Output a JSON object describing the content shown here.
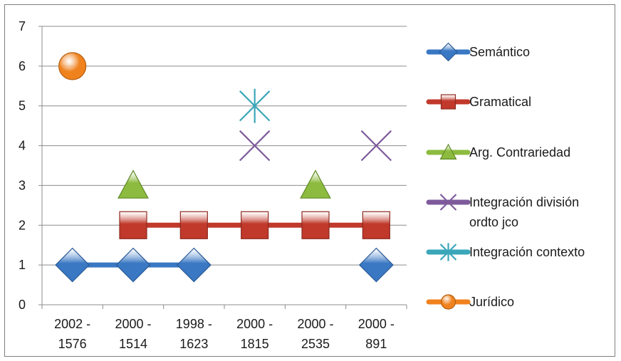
{
  "chart_data": {
    "type": "line",
    "title": "",
    "xlabel": "",
    "ylabel": "",
    "ylim": [
      0,
      7
    ],
    "y_ticks": [
      "0",
      "1",
      "2",
      "3",
      "4",
      "5",
      "6",
      "7"
    ],
    "grid": true,
    "legend_position": "right",
    "categories": [
      [
        "2002 -",
        "1576"
      ],
      [
        "2000 -",
        "1514"
      ],
      [
        "1998 -",
        "1623"
      ],
      [
        "2000 -",
        "1815"
      ],
      [
        "2000 -",
        "2535"
      ],
      [
        "2000 -",
        "891"
      ]
    ],
    "series": [
      {
        "name": "Semántico",
        "values": [
          1,
          1,
          1,
          null,
          null,
          1
        ],
        "color": "#3a78c3",
        "marker": "diamond",
        "line": true
      },
      {
        "name": "Gramatical",
        "values": [
          null,
          2,
          2,
          2,
          2,
          2
        ],
        "color": "#c0392b",
        "marker": "square",
        "line": true
      },
      {
        "name": "Arg. Contrariedad",
        "values": [
          null,
          3,
          null,
          null,
          3,
          null
        ],
        "color": "#8dbb3f",
        "marker": "triangle",
        "line": true
      },
      {
        "name": "Integración división ordto jco",
        "legend_lines": [
          "Integración división",
          "ordto jco"
        ],
        "values": [
          null,
          null,
          null,
          4,
          null,
          4
        ],
        "color": "#7e5a9b",
        "marker": "x",
        "line": true
      },
      {
        "name": "Integración contexto",
        "values": [
          null,
          null,
          null,
          5,
          null,
          null
        ],
        "color": "#3aa6b9",
        "marker": "star",
        "line": true
      },
      {
        "name": "Jurídico",
        "values": [
          6,
          null,
          null,
          null,
          null,
          null
        ],
        "color": "#f0821e",
        "marker": "circle",
        "line": true
      }
    ]
  }
}
